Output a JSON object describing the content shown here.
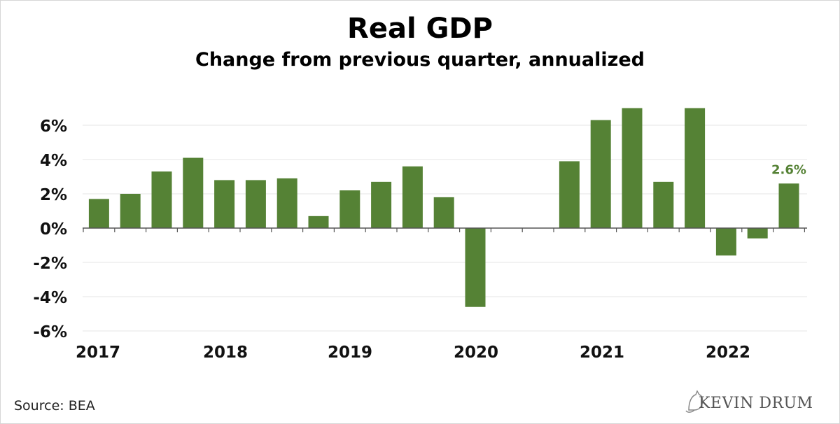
{
  "chart_data": {
    "type": "bar",
    "title": "Real GDP",
    "subtitle": "Change from previous quarter, annualized",
    "xlabel": "",
    "ylabel": "",
    "ylim": [
      -6,
      7
    ],
    "y_ticks": [
      "6%",
      "4%",
      "2%",
      "0%",
      "-2%",
      "-4%",
      "-6%"
    ],
    "y_tick_values": [
      6,
      4,
      2,
      0,
      -2,
      -4,
      -6
    ],
    "year_labels": [
      "2017",
      "2018",
      "2019",
      "2020",
      "2021",
      "2022"
    ],
    "categories": [
      "2017 Q1",
      "2017 Q2",
      "2017 Q3",
      "2017 Q4",
      "2018 Q1",
      "2018 Q2",
      "2018 Q3",
      "2018 Q4",
      "2019 Q1",
      "2019 Q2",
      "2019 Q3",
      "2019 Q4",
      "2020 Q1",
      "2020 Q2",
      "2020 Q3",
      "2020 Q4",
      "2021 Q1",
      "2021 Q2",
      "2021 Q3",
      "2021 Q4",
      "2022 Q1",
      "2022 Q2",
      "2022 Q3"
    ],
    "values": [
      1.7,
      2.0,
      3.3,
      4.1,
      2.8,
      2.8,
      2.9,
      0.7,
      2.2,
      2.7,
      3.6,
      1.8,
      -4.6,
      null,
      null,
      3.9,
      6.3,
      7.0,
      2.7,
      7.0,
      -1.6,
      -0.6,
      2.6
    ],
    "annotation": "2.6%",
    "grid": true,
    "bar_color": "#558235"
  },
  "source": "Source: BEA",
  "logo": "KEVIN DRUM"
}
